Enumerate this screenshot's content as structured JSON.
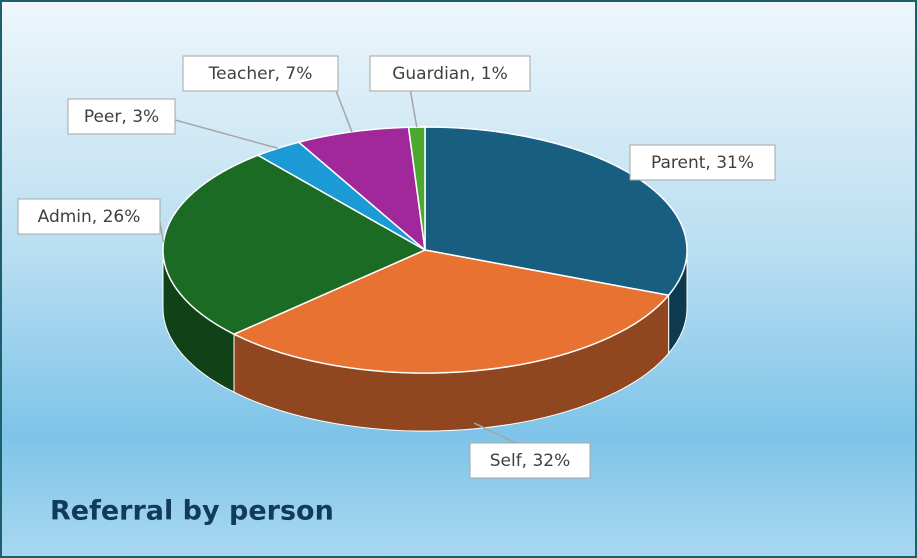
{
  "chart_data": {
    "type": "pie",
    "title": "Referral by person",
    "values": [
      31,
      32,
      26,
      3,
      7,
      1
    ],
    "value_labels": [
      "Parent, 31%",
      "Self, 32%",
      "Admin, 26%",
      "Peer, 3%",
      "Teacher, 7%",
      "Guardian, 1%"
    ],
    "colors": [
      "#175e80",
      "#e87232",
      "#1c6b25",
      "#1b9ad6",
      "#a0289a",
      "#4ea72e"
    ]
  }
}
